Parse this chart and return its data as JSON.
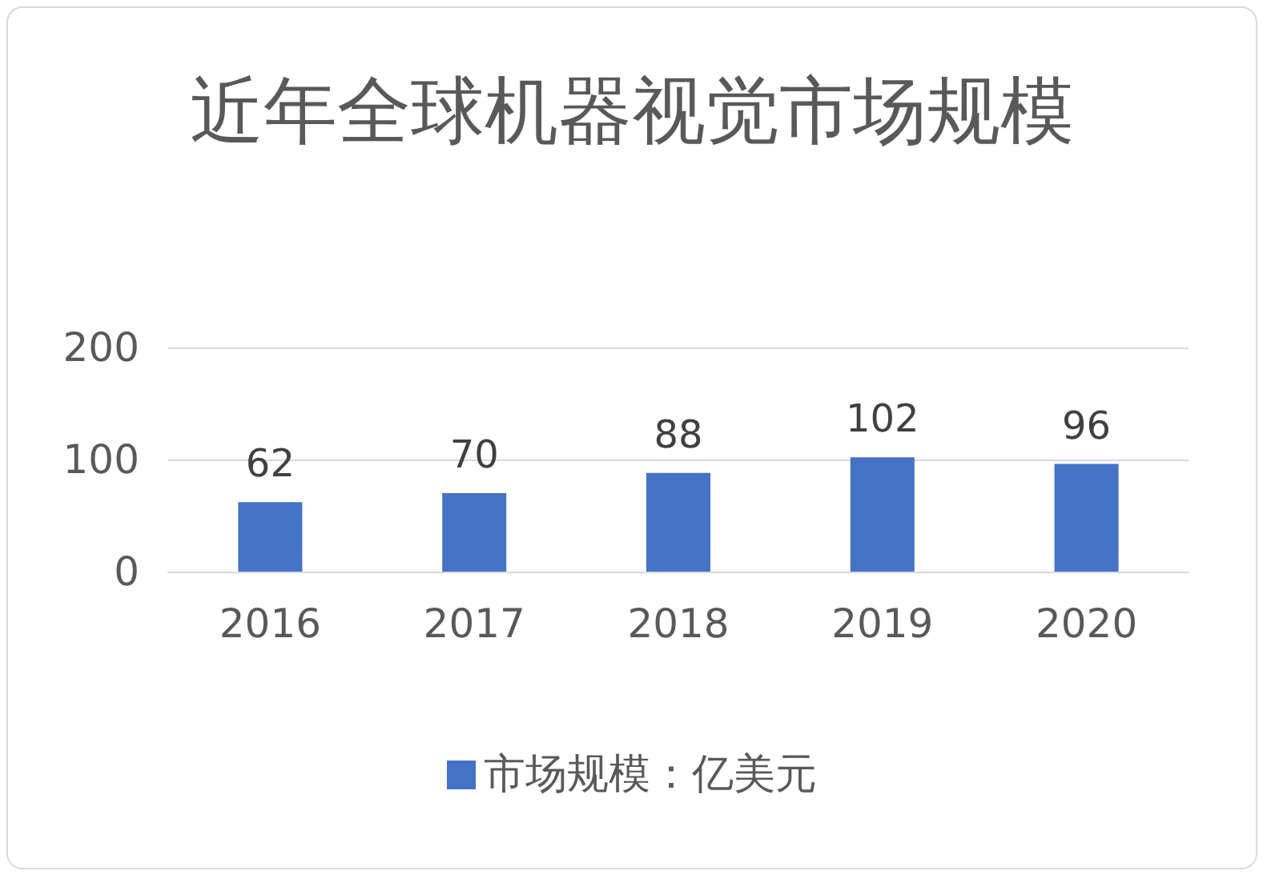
{
  "chart_data": {
    "type": "bar",
    "title": "近年全球机器视觉市场规模",
    "categories": [
      "2016",
      "2017",
      "2018",
      "2019",
      "2020"
    ],
    "series": [
      {
        "name": "市场规模：亿美元",
        "color": "#4472c4",
        "values": [
          62,
          70,
          88,
          102,
          96
        ]
      }
    ],
    "ylim": [
      0,
      200
    ],
    "yticks": [
      0,
      100,
      200
    ],
    "grid": "y",
    "legend": "bottom",
    "data_labels": true
  }
}
